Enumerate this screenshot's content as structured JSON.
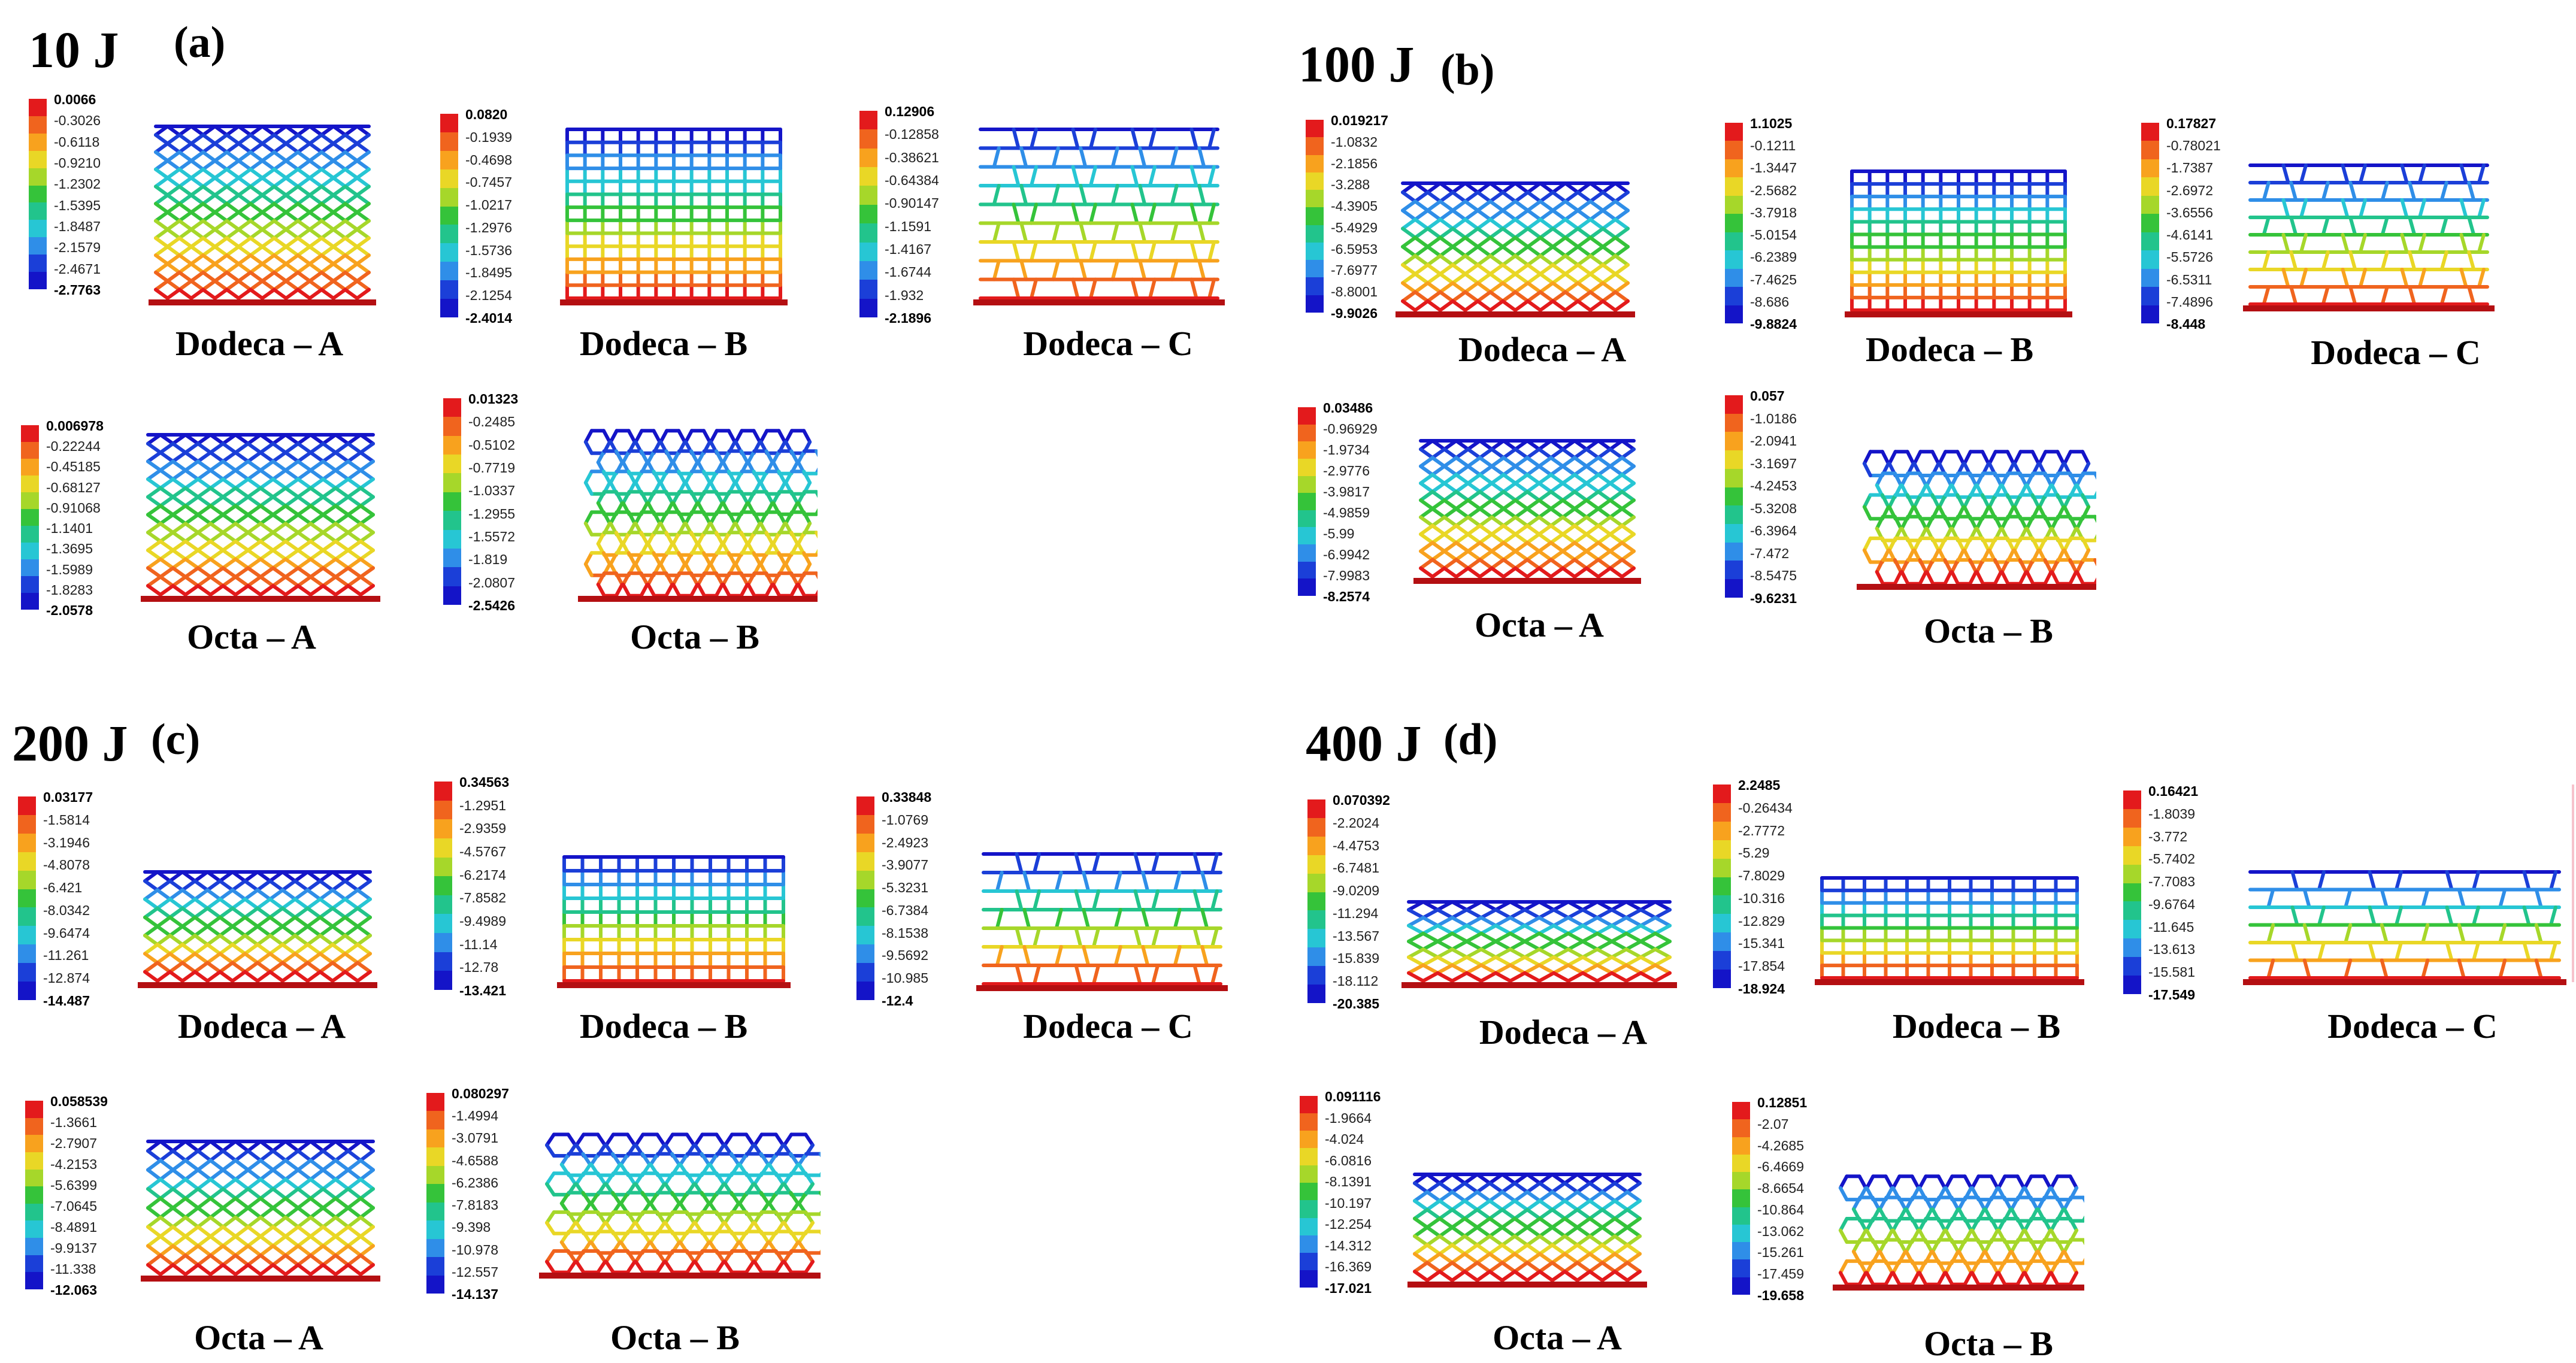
{
  "colorscale": [
    "#e31a1c",
    "#f0641e",
    "#f8a21e",
    "#e9d726",
    "#a6d72a",
    "#35c33a",
    "#22c48c",
    "#27c6d4",
    "#2f8ee8",
    "#1b3fd8",
    "#1414c8"
  ],
  "panels": [
    {
      "id": "a",
      "energy": "10 J",
      "letter": "(a)",
      "items": [
        {
          "label": "Dodeca – A",
          "structure": "dodeca",
          "legend": [
            "0.0066",
            "-0.3026",
            "-0.6118",
            "-0.9210",
            "-1.2302",
            "-1.5395",
            "-1.8487",
            "-2.1579",
            "-2.4671",
            "-2.7763"
          ]
        },
        {
          "label": "Dodeca – B",
          "structure": "grid",
          "legend": [
            "0.0820",
            "-0.1939",
            "-0.4698",
            "-0.7457",
            "-1.0217",
            "-1.2976",
            "-1.5736",
            "-1.8495",
            "-2.1254",
            "-2.4014"
          ]
        },
        {
          "label": "Dodeca – C",
          "structure": "brick",
          "legend": [
            "0.12906",
            "-0.12858",
            "-0.38621",
            "-0.64384",
            "-0.90147",
            "-1.1591",
            "-1.4167",
            "-1.6744",
            "-1.932",
            "-2.1896"
          ]
        },
        {
          "label": "Octa – A",
          "structure": "dodeca",
          "legend": [
            "0.006978",
            "-0.22244",
            "-0.45185",
            "-0.68127",
            "-0.91068",
            "-1.1401",
            "-1.3695",
            "-1.5989",
            "-1.8283",
            "-2.0578"
          ]
        },
        {
          "label": "Octa – B",
          "structure": "hex",
          "legend": [
            "0.01323",
            "-0.2485",
            "-0.5102",
            "-0.7719",
            "-1.0337",
            "-1.2955",
            "-1.5572",
            "-1.819",
            "-2.0807",
            "-2.5426"
          ]
        }
      ]
    },
    {
      "id": "b",
      "energy": "100 J",
      "letter": "(b)",
      "items": [
        {
          "label": "Dodeca – A",
          "structure": "dodeca",
          "legend": [
            "0.019217",
            "-1.0832",
            "-2.1856",
            "-3.288",
            "-4.3905",
            "-5.4929",
            "-6.5953",
            "-7.6977",
            "-8.8001",
            "-9.9026"
          ]
        },
        {
          "label": "Dodeca – B",
          "structure": "grid",
          "legend": [
            "1.1025",
            "-0.1211",
            "-1.3447",
            "-2.5682",
            "-3.7918",
            "-5.0154",
            "-6.2389",
            "-7.4625",
            "-8.686",
            "-9.8824"
          ]
        },
        {
          "label": "Dodeca – C",
          "structure": "brick",
          "legend": [
            "0.17827",
            "-0.78021",
            "-1.7387",
            "-2.6972",
            "-3.6556",
            "-4.6141",
            "-5.5726",
            "-6.5311",
            "-7.4896",
            "-8.448"
          ]
        },
        {
          "label": "Octa – A",
          "structure": "dodeca",
          "legend": [
            "0.03486",
            "-0.96929",
            "-1.9734",
            "-2.9776",
            "-3.9817",
            "-4.9859",
            "-5.99",
            "-6.9942",
            "-7.9983",
            "-8.2574"
          ]
        },
        {
          "label": "Octa – B",
          "structure": "hex",
          "legend": [
            "0.057",
            "-1.0186",
            "-2.0941",
            "-3.1697",
            "-4.2453",
            "-5.3208",
            "-6.3964",
            "-7.472",
            "-8.5475",
            "-9.6231"
          ]
        }
      ]
    },
    {
      "id": "c",
      "energy": "200 J",
      "letter": "(c)",
      "items": [
        {
          "label": "Dodeca – A",
          "structure": "dodeca",
          "legend": [
            "0.03177",
            "-1.5814",
            "-3.1946",
            "-4.8078",
            "-6.421",
            "-8.0342",
            "-9.6474",
            "-11.261",
            "-12.874",
            "-14.487"
          ]
        },
        {
          "label": "Dodeca – B",
          "structure": "grid",
          "legend": [
            "0.34563",
            "-1.2951",
            "-2.9359",
            "-4.5767",
            "-6.2174",
            "-7.8582",
            "-9.4989",
            "-11.14",
            "-12.78",
            "-13.421"
          ]
        },
        {
          "label": "Dodeca – C",
          "structure": "brick",
          "legend": [
            "0.33848",
            "-1.0769",
            "-2.4923",
            "-3.9077",
            "-5.3231",
            "-6.7384",
            "-8.1538",
            "-9.5692",
            "-10.985",
            "-12.4"
          ]
        },
        {
          "label": "Octa – A",
          "structure": "dodeca",
          "legend": [
            "0.058539",
            "-1.3661",
            "-2.7907",
            "-4.2153",
            "-5.6399",
            "-7.0645",
            "-8.4891",
            "-9.9137",
            "-11.338",
            "-12.063"
          ]
        },
        {
          "label": "Octa – B",
          "structure": "hex",
          "legend": [
            "0.080297",
            "-1.4994",
            "-3.0791",
            "-4.6588",
            "-6.2386",
            "-7.8183",
            "-9.398",
            "-10.978",
            "-12.557",
            "-14.137"
          ]
        }
      ]
    },
    {
      "id": "d",
      "energy": "400 J",
      "letter": "(d)",
      "items": [
        {
          "label": "Dodeca – A",
          "structure": "dodeca",
          "legend": [
            "0.070392",
            "-2.2024",
            "-4.4753",
            "-6.7481",
            "-9.0209",
            "-11.294",
            "-13.567",
            "-15.839",
            "-18.112",
            "-20.385"
          ]
        },
        {
          "label": "Dodeca – B",
          "structure": "grid",
          "legend": [
            "2.2485",
            "-0.26434",
            "-2.7772",
            "-5.29",
            "-7.8029",
            "-10.316",
            "-12.829",
            "-15.341",
            "-17.854",
            "-18.924"
          ]
        },
        {
          "label": "Dodeca – C",
          "structure": "brick",
          "legend": [
            "0.16421",
            "-1.8039",
            "-3.772",
            "-5.7402",
            "-7.7083",
            "-9.6764",
            "-11.645",
            "-13.613",
            "-15.581",
            "-17.549"
          ]
        },
        {
          "label": "Octa – A",
          "structure": "dodeca",
          "legend": [
            "0.091116",
            "-1.9664",
            "-4.024",
            "-6.0816",
            "-8.1391",
            "-10.197",
            "-12.254",
            "-14.312",
            "-16.369",
            "-17.021"
          ]
        },
        {
          "label": "Octa – B",
          "structure": "hex",
          "legend": [
            "0.12851",
            "-2.07",
            "-4.2685",
            "-6.4669",
            "-8.6654",
            "-10.864",
            "-13.062",
            "-15.261",
            "-17.459",
            "-19.658"
          ]
        }
      ]
    }
  ]
}
